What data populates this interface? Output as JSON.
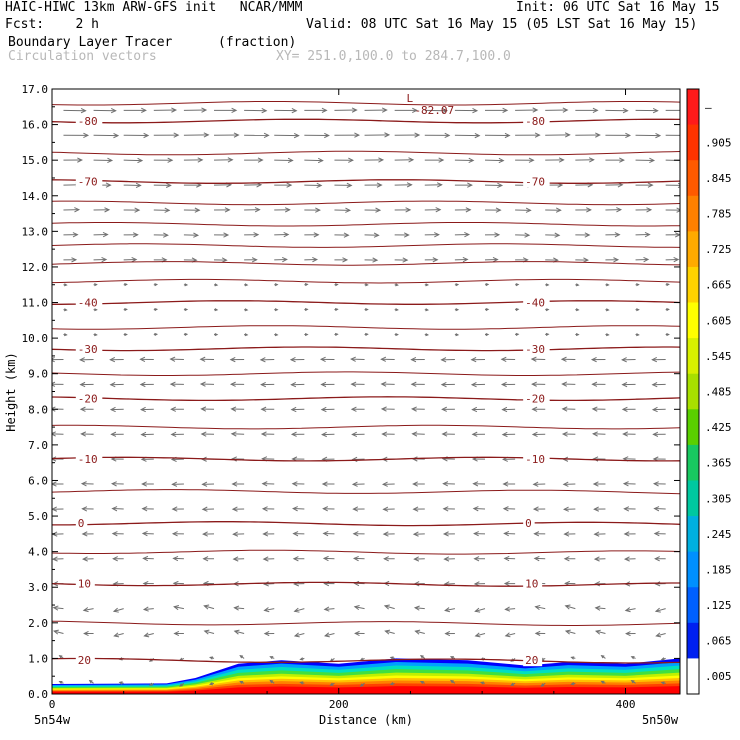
{
  "header": {
    "title_left": "HAIC-HIWC 13km ARW-GFS init   NCAR/MMM",
    "init": "Init: 06 UTC Sat 16 May 15",
    "fcst": "Fcst:    2 h",
    "valid": "Valid: 08 UTC Sat 16 May 15 (05 LST Sat 16 May 15)",
    "field1": "Boundary Layer Tracer",
    "field1_units": "(fraction)",
    "field2": "Circulation vectors",
    "xsec": "XY= 251.0,100.0 to 284.7,100.0"
  },
  "colors": {
    "contour": "#8b1a1a",
    "vector": "#707070",
    "field_high": "#ff0000",
    "field_mid": "#ffff00",
    "field_low": "#0000ff"
  },
  "chart_data": {
    "type": "heatmap",
    "xlabel": "Distance (km)",
    "ylabel": "Height (km)",
    "xlim": [
      0,
      438
    ],
    "ylim": [
      0,
      17
    ],
    "x_ticks": [
      "0",
      "200",
      "400"
    ],
    "x_end_labels": {
      "left": "5n54w",
      "right": "5n50w"
    },
    "y_ticks": [
      "0.0",
      "1.0",
      "2.0",
      "3.0",
      "4.0",
      "5.0",
      "6.0",
      "7.0",
      "8.0",
      "9.0",
      "10.0",
      "11.0",
      "12.0",
      "13.0",
      "14.0",
      "15.0",
      "16.0",
      "17.0"
    ],
    "colorbar": {
      "labels": [
        "–",
        ".905",
        ".845",
        ".785",
        ".725",
        ".665",
        ".605",
        ".545",
        ".485",
        ".425",
        ".365",
        ".305",
        ".245",
        ".185",
        ".125",
        ".065",
        ".005"
      ],
      "colors": [
        "#ff1a1a",
        "#ff3300",
        "#ff5a00",
        "#ff8000",
        "#ffaa00",
        "#ffd200",
        "#ffff00",
        "#d8f000",
        "#a8e000",
        "#5ad000",
        "#18c860",
        "#00c8a0",
        "#00b0e0",
        "#0090ff",
        "#0060ff",
        "#0020f0",
        "#ffffff"
      ]
    },
    "temperature_contours": [
      {
        "label": "-80",
        "h": 16.1
      },
      {
        "label": "-70",
        "h": 14.4
      },
      {
        "label": "-40",
        "h": 11.0
      },
      {
        "label": "-30",
        "h": 9.7
      },
      {
        "label": "-20",
        "h": 8.3
      },
      {
        "label": "-10",
        "h": 6.6
      },
      {
        "label": "0",
        "h": 4.8
      },
      {
        "label": "10",
        "h": 3.1
      },
      {
        "label": "20",
        "h": 0.95
      }
    ],
    "unlabeled_contour_heights": [
      16.6,
      15.2,
      13.8,
      13.2,
      12.6,
      12.1,
      11.6,
      10.3,
      9.0,
      7.5,
      5.7,
      4.0,
      2.0
    ],
    "low_marker": {
      "label": "L",
      "value": "-82.07",
      "x": 250,
      "h": 16.8
    },
    "boundary_layer_top": [
      {
        "x": 0,
        "h": 0.28
      },
      {
        "x": 80,
        "h": 0.3
      },
      {
        "x": 100,
        "h": 0.45
      },
      {
        "x": 130,
        "h": 0.85
      },
      {
        "x": 160,
        "h": 0.95
      },
      {
        "x": 200,
        "h": 0.85
      },
      {
        "x": 240,
        "h": 1.0
      },
      {
        "x": 290,
        "h": 0.95
      },
      {
        "x": 330,
        "h": 0.8
      },
      {
        "x": 360,
        "h": 0.9
      },
      {
        "x": 400,
        "h": 0.85
      },
      {
        "x": 438,
        "h": 1.0
      }
    ]
  }
}
